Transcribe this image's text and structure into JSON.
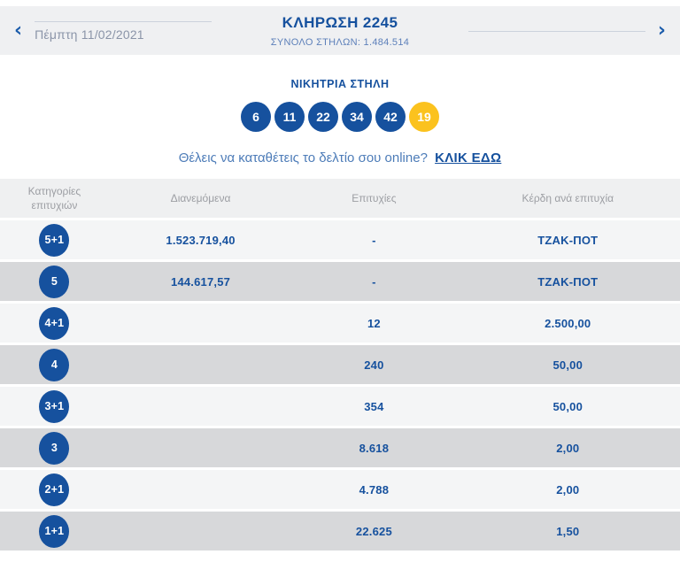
{
  "colors": {
    "brand_blue": "#16519e",
    "light_blue": "#5d80ba",
    "joker_yellow": "#fbc21e",
    "bar_background": "#eff0f2",
    "row_light": "#f4f5f6",
    "row_dark": "#d7d8da"
  },
  "icons": {
    "prev": "‹",
    "next": "›"
  },
  "header": {
    "date": "Πέμπτη 11/02/2021",
    "title": "ΚΛΗΡΩΣΗ 2245",
    "subtitle": "ΣΥΝΟΛΟ ΣΤΗΛΩΝ: 1.484.514"
  },
  "winning": {
    "heading": "ΝΙΚΗΤΡΙΑ ΣΤΗΛΗ",
    "numbers": [
      "6",
      "11",
      "22",
      "34",
      "42"
    ],
    "joker": "19"
  },
  "promo": {
    "text": "Θέλεις να καταθέτεις το δελτίο σου online?",
    "link_label": "ΚΛΙΚ ΕΔΩ"
  },
  "table": {
    "headers": {
      "categories": "Κατηγορίες επιτυχιών",
      "distributed": "Διανεμόμενα",
      "winners": "Επιτυχίες",
      "prize_per_winner": "Κέρδη ανά επιτυχία"
    },
    "rows": [
      {
        "category": "5+1",
        "distributed": "1.523.719,40",
        "winners": "-",
        "prize": "ΤΖΑΚ-ΠΟΤ"
      },
      {
        "category": "5",
        "distributed": "144.617,57",
        "winners": "-",
        "prize": "ΤΖΑΚ-ΠΟΤ"
      },
      {
        "category": "4+1",
        "distributed": "",
        "winners": "12",
        "prize": "2.500,00"
      },
      {
        "category": "4",
        "distributed": "",
        "winners": "240",
        "prize": "50,00"
      },
      {
        "category": "3+1",
        "distributed": "",
        "winners": "354",
        "prize": "50,00"
      },
      {
        "category": "3",
        "distributed": "",
        "winners": "8.618",
        "prize": "2,00"
      },
      {
        "category": "2+1",
        "distributed": "",
        "winners": "4.788",
        "prize": "2,00"
      },
      {
        "category": "1+1",
        "distributed": "",
        "winners": "22.625",
        "prize": "1,50"
      }
    ]
  }
}
